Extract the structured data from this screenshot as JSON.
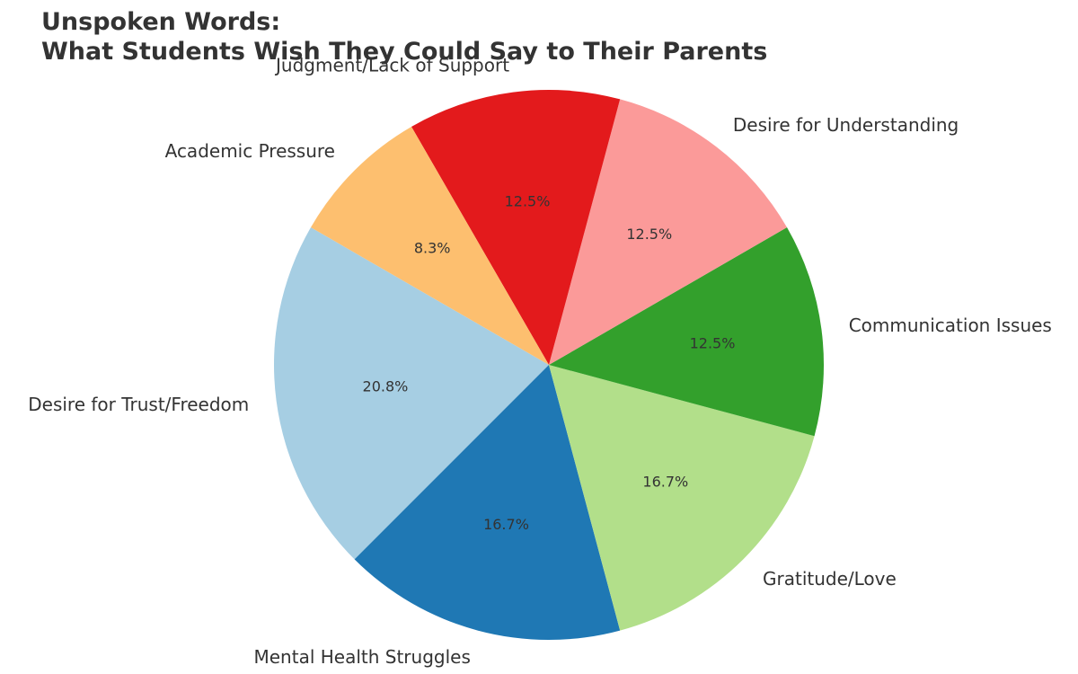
{
  "chart_data": {
    "type": "pie",
    "title": "Unspoken Words:\nWhat Students Wish They Could Say to Their Parents",
    "title_lines": [
      "Unspoken Words:",
      "What Students Wish They Could Say to Their Parents"
    ],
    "categories": [
      "Desire for Trust/Freedom",
      "Mental Health Struggles",
      "Gratitude/Love",
      "Communication Issues",
      "Desire for Understanding",
      "Judgment/Lack of Support",
      "Academic Pressure"
    ],
    "values": [
      5,
      4,
      4,
      3,
      3,
      3,
      2
    ],
    "percent_labels": [
      "20.8%",
      "16.7%",
      "16.7%",
      "12.5%",
      "12.5%",
      "12.5%",
      "8.3%"
    ],
    "colors": [
      "#a6cee3",
      "#1f78b4",
      "#b2df8a",
      "#33a02c",
      "#fb9a99",
      "#e31a1c",
      "#fdbf6f"
    ],
    "start_angle_deg": 150,
    "direction": "counterclockwise"
  }
}
